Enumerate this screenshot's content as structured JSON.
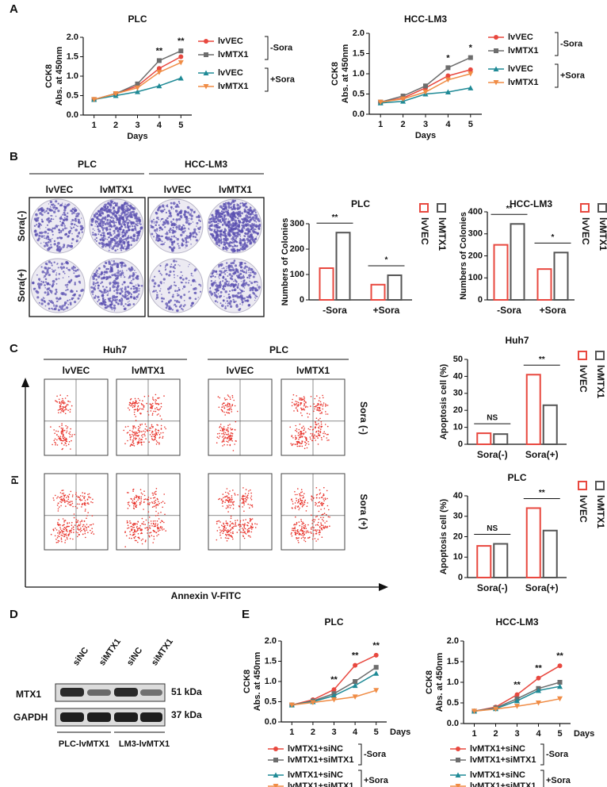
{
  "panel_letters": [
    "A",
    "B",
    "C",
    "D",
    "E"
  ],
  "colony": {
    "cell_lines": [
      "PLC",
      "HCC-LM3"
    ],
    "groups": [
      "lvVEC",
      "lvMTX1",
      "lvVEC",
      "lvMTX1"
    ],
    "conditions": [
      "Sora(-)",
      "Sora(+)"
    ]
  },
  "flow": {
    "cell_lines": [
      "Huh7",
      "PLC"
    ],
    "groups": [
      "lvVEC",
      "lvMTX1",
      "lvVEC",
      "lvMTX1"
    ],
    "conditions": [
      "Sora (-)",
      "Sora (+)"
    ],
    "y_axis": "PI",
    "x_axis": "Annexin V-FITC"
  },
  "western": {
    "lanes": [
      "siNC",
      "siMTX1",
      "siNC",
      "siMTX1"
    ],
    "bands": [
      "MTX1",
      "GAPDH"
    ],
    "sizes": [
      "51 kDa",
      "37 kDa"
    ],
    "groups": [
      "PLC-lvMTX1",
      "LM3-lvMTX1"
    ]
  },
  "chart_data": [
    {
      "type": "line",
      "title": "PLC",
      "xlabel": "Days",
      "ylabel": [
        "CCK8",
        "Abs. at 450nm"
      ],
      "x": [
        1,
        2,
        3,
        4,
        5
      ],
      "xlim": [
        0.5,
        5.5
      ],
      "xticks": [
        1,
        2,
        3,
        4,
        5
      ],
      "ylim": [
        0,
        2
      ],
      "yticks": [
        {
          "value": 0,
          "label": "0.0"
        },
        0.5,
        {
          "value": 1,
          "label": "1.0"
        },
        1.5,
        {
          "value": 2,
          "label": "2.0"
        }
      ],
      "series": [
        {
          "name": "lvVEC",
          "color": "#e8483f",
          "values": [
            0.4,
            0.55,
            0.75,
            1.2,
            1.5
          ]
        },
        {
          "name": "lvMTX1",
          "color": "#6d6d6d",
          "values": [
            0.4,
            0.55,
            0.8,
            1.4,
            1.65
          ]
        },
        {
          "name": "lvVEC",
          "color": "#1f8a96",
          "values": [
            0.4,
            0.5,
            0.6,
            0.75,
            0.95
          ]
        },
        {
          "name": "lvMTX1",
          "color": "#f08c45",
          "values": [
            0.4,
            0.55,
            0.7,
            1.1,
            1.35
          ]
        }
      ],
      "legend": "right",
      "legend_groups": [
        "-Sora",
        "+Sora"
      ],
      "annotations": [
        {
          "x": 4,
          "text": "**"
        },
        {
          "x": 5,
          "text": "**"
        }
      ]
    },
    {
      "type": "line",
      "title": "HCC-LM3",
      "xlabel": "Days",
      "ylabel": [
        "CCK8",
        "Abs. at 450nm"
      ],
      "x": [
        1,
        2,
        3,
        4,
        5
      ],
      "xlim": [
        0.5,
        5.5
      ],
      "xticks": [
        1,
        2,
        3,
        4,
        5
      ],
      "ylim": [
        0,
        2
      ],
      "yticks": [
        {
          "value": 0,
          "label": "0.0"
        },
        0.5,
        {
          "value": 1,
          "label": "1.0"
        },
        1.5,
        {
          "value": 2,
          "label": "2.0"
        }
      ],
      "series": [
        {
          "name": "lvVEC",
          "color": "#e8483f",
          "values": [
            0.3,
            0.4,
            0.65,
            0.95,
            1.1
          ]
        },
        {
          "name": "lvMTX1",
          "color": "#6d6d6d",
          "values": [
            0.3,
            0.45,
            0.7,
            1.15,
            1.4
          ]
        },
        {
          "name": "lvVEC",
          "color": "#1f8a96",
          "values": [
            0.28,
            0.32,
            0.5,
            0.55,
            0.65
          ]
        },
        {
          "name": "lvMTX1",
          "color": "#f08c45",
          "values": [
            0.3,
            0.38,
            0.55,
            0.85,
            1.0
          ]
        }
      ],
      "legend": "right",
      "legend_groups": [
        "-Sora",
        "+Sora"
      ],
      "annotations": [
        {
          "x": 4,
          "text": "*"
        },
        {
          "x": 5,
          "text": "*"
        }
      ]
    },
    {
      "type": "bar",
      "title": "PLC",
      "ylabel": [
        "Numbers of Colonies"
      ],
      "categories": [
        "-Sora",
        "+Sora"
      ],
      "ylim": [
        0,
        300
      ],
      "yticks": [
        0,
        100,
        200,
        300
      ],
      "series": [
        {
          "name": "lvVEC",
          "color": "#e8483f",
          "values": [
            125,
            60
          ]
        },
        {
          "name": "lvMTX1",
          "color": "#555555",
          "values": [
            265,
            97
          ]
        }
      ],
      "legend": "right",
      "annotations": [
        "**",
        "*"
      ]
    },
    {
      "type": "bar",
      "title": "HCC-LM3",
      "ylabel": [
        "Numbers of Colonies"
      ],
      "categories": [
        "-Sora",
        "+Sora"
      ],
      "ylim": [
        0,
        400
      ],
      "yticks": [
        0,
        100,
        200,
        300,
        400
      ],
      "series": [
        {
          "name": "lvVEC",
          "color": "#e8483f",
          "values": [
            250,
            140
          ]
        },
        {
          "name": "lvMTX1",
          "color": "#555555",
          "values": [
            345,
            215
          ]
        }
      ],
      "legend": "right",
      "annotations": [
        "**",
        "*"
      ]
    },
    {
      "type": "bar",
      "title": "Huh7",
      "ylabel": [
        "Apoptosis cell (%)"
      ],
      "categories": [
        "Sora(-)",
        "Sora(+)"
      ],
      "ylim": [
        0,
        50
      ],
      "yticks": [
        0,
        10,
        20,
        30,
        40,
        50
      ],
      "series": [
        {
          "name": "lvVEC",
          "color": "#e8483f",
          "values": [
            6.5,
            41
          ]
        },
        {
          "name": "lvMTX1",
          "color": "#555555",
          "values": [
            6,
            23
          ]
        }
      ],
      "legend": "right",
      "annotations": [
        "NS",
        "**"
      ]
    },
    {
      "type": "bar",
      "title": "PLC",
      "ylabel": [
        "Apoptosis cell (%)"
      ],
      "categories": [
        "Sora(-)",
        "Sora(+)"
      ],
      "ylim": [
        0,
        40
      ],
      "yticks": [
        0,
        10,
        20,
        30,
        40
      ],
      "series": [
        {
          "name": "lvVEC",
          "color": "#e8483f",
          "values": [
            15.5,
            34
          ]
        },
        {
          "name": "lvMTX1",
          "color": "#555555",
          "values": [
            16.5,
            23
          ]
        }
      ],
      "legend": "right",
      "annotations": [
        "NS",
        "**"
      ]
    },
    {
      "type": "line",
      "title": "PLC",
      "xlabel": "Days",
      "ylabel": [
        "CCK8",
        "Abs. at 450nm"
      ],
      "x": [
        1,
        2,
        3,
        4,
        5
      ],
      "xlim": [
        0.5,
        5.5
      ],
      "xticks": [
        1,
        2,
        3,
        4,
        5
      ],
      "ylim": [
        0,
        2
      ],
      "yticks": [
        {
          "value": 0,
          "label": "0.0"
        },
        0.5,
        {
          "value": 1,
          "label": "1.0"
        },
        1.5,
        {
          "value": 2,
          "label": "2.0"
        }
      ],
      "series": [
        {
          "name": "lvMTX1+siNC",
          "color": "#e8483f",
          "values": [
            0.42,
            0.55,
            0.8,
            1.4,
            1.65
          ]
        },
        {
          "name": "lvMTX1+siMTX1",
          "color": "#6d6d6d",
          "values": [
            0.42,
            0.52,
            0.7,
            1.0,
            1.35
          ]
        },
        {
          "name": "lvMTX1+siNC",
          "color": "#1f8a96",
          "values": [
            0.42,
            0.5,
            0.65,
            0.9,
            1.2
          ]
        },
        {
          "name": "lvMTX1+siMTX1",
          "color": "#f08c45",
          "values": [
            0.42,
            0.48,
            0.55,
            0.62,
            0.78
          ]
        }
      ],
      "legend": "bottom",
      "legend_groups": [
        "-Sora",
        "+Sora"
      ],
      "annotations": [
        {
          "x": 3,
          "text": "**"
        },
        {
          "x": 4,
          "text": "**"
        },
        {
          "x": 5,
          "text": "**"
        }
      ]
    },
    {
      "type": "line",
      "title": "HCC-LM3",
      "xlabel": "Days",
      "ylabel": [
        "CCK8",
        "Abs. at 450nm"
      ],
      "x": [
        1,
        2,
        3,
        4,
        5
      ],
      "xlim": [
        0.5,
        5.5
      ],
      "xticks": [
        1,
        2,
        3,
        4,
        5
      ],
      "ylim": [
        0,
        2
      ],
      "yticks": [
        {
          "value": 0,
          "label": "0.0"
        },
        0.5,
        {
          "value": 1,
          "label": "1.0"
        },
        1.5,
        {
          "value": 2,
          "label": "2.0"
        }
      ],
      "series": [
        {
          "name": "lvMTX1+siNC",
          "color": "#e8483f",
          "values": [
            0.3,
            0.4,
            0.7,
            1.1,
            1.4
          ]
        },
        {
          "name": "lvMTX1+siMTX1",
          "color": "#6d6d6d",
          "values": [
            0.3,
            0.38,
            0.6,
            0.85,
            1.0
          ]
        },
        {
          "name": "lvMTX1+siNC",
          "color": "#1f8a96",
          "values": [
            0.3,
            0.36,
            0.55,
            0.8,
            0.9
          ]
        },
        {
          "name": "lvMTX1+siMTX1",
          "color": "#f08c45",
          "values": [
            0.3,
            0.35,
            0.42,
            0.5,
            0.6
          ]
        }
      ],
      "legend": "bottom",
      "legend_groups": [
        "-Sora",
        "+Sora"
      ],
      "annotations": [
        {
          "x": 3,
          "text": "**"
        },
        {
          "x": 4,
          "text": "**"
        },
        {
          "x": 5,
          "text": "**"
        }
      ]
    }
  ]
}
